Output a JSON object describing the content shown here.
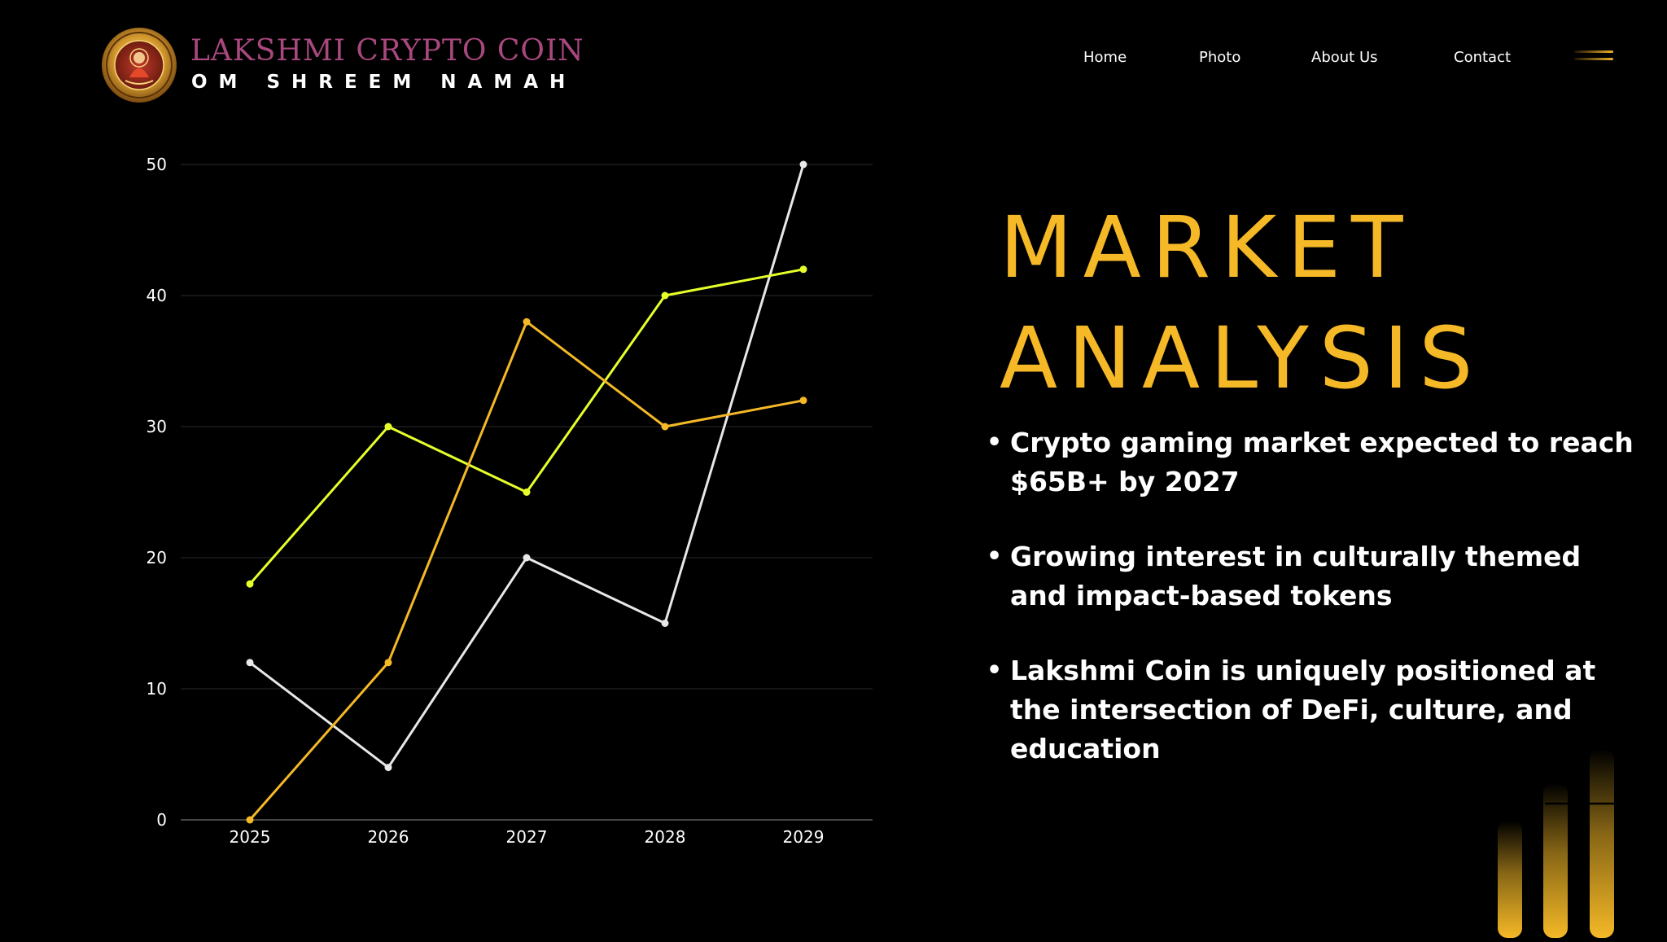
{
  "brand": {
    "name": "LAKSHMI CRYPTO COIN",
    "tagline": "OM SHREEM NAMAH",
    "logo_icon": "lakshmi-coin-logo-icon"
  },
  "nav": {
    "items": [
      {
        "label": "Home"
      },
      {
        "label": "Photo"
      },
      {
        "label": "About Us"
      },
      {
        "label": "Contact"
      }
    ],
    "menu_icon": "hamburger-menu-icon"
  },
  "title": {
    "line1": "MARKET",
    "line2": "ANALYSIS"
  },
  "bullets": [
    {
      "text": "Crypto gaming market expected to reach $65B+ by 2027"
    },
    {
      "text": "Growing interest in culturally themed and impact-based tokens"
    },
    {
      "text": "Lakshmi Coin is uniquely positioned at the intersection of DeFi, culture, and education"
    }
  ],
  "colors": {
    "background": "#000000",
    "accent": "#f5b927",
    "brand": "#a8487e",
    "series_white": "#e8e8e8",
    "series_lime": "#e6ff2a",
    "series_orange": "#f5b927",
    "gridline": "#2a2a2a"
  },
  "chart_data": {
    "type": "line",
    "x": [
      2025,
      2026,
      2027,
      2028,
      2029
    ],
    "series": [
      {
        "values": [
          12,
          4,
          20,
          15,
          50
        ],
        "color": "#e8e8e8"
      },
      {
        "values": [
          18,
          30,
          25,
          40,
          42
        ],
        "color": "#e6ff2a"
      },
      {
        "values": [
          0,
          12,
          38,
          30,
          32
        ],
        "color": "#f5b927"
      }
    ],
    "ylim": [
      0,
      50
    ],
    "yticks": [
      0,
      10,
      20,
      30,
      40,
      50
    ],
    "title": "",
    "xlabel": "",
    "ylabel": "",
    "grid": true,
    "legend": "none"
  }
}
